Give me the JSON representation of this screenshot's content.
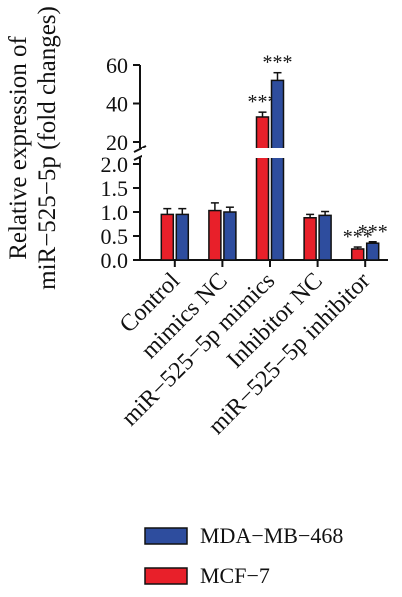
{
  "chart_data": {
    "type": "bar",
    "ylabel_lines": [
      "Relative expression of",
      "miR−525−5p (fold changes)"
    ],
    "categories": [
      "Control",
      "mimics NC",
      "miR−525−5p mimics",
      "Inhibitor NC",
      "miR−525−5p inhibitor"
    ],
    "series": [
      {
        "name": "MCF−7",
        "color": "#e8202a",
        "values": [
          0.95,
          1.03,
          33,
          0.88,
          0.23
        ],
        "errors": [
          0.12,
          0.16,
          2.5,
          0.07,
          0.04
        ],
        "significance": [
          "",
          "",
          "***",
          "",
          "***"
        ]
      },
      {
        "name": "MDA−MB−468",
        "color": "#2e4d9e",
        "values": [
          0.95,
          1.0,
          52,
          0.93,
          0.35
        ],
        "errors": [
          0.12,
          0.1,
          4,
          0.08,
          0.03
        ],
        "significance": [
          "",
          "",
          "***",
          "",
          "***"
        ]
      }
    ],
    "ylim_lower": [
      0,
      2.0
    ],
    "ylim_upper": [
      20,
      60
    ],
    "yticks_lower": [
      "0.0",
      "0.5",
      "1.0",
      "1.5",
      "2.0"
    ],
    "yticks_upper": [
      "20",
      "40",
      "60"
    ],
    "y_axis_break": true,
    "legend_position": "bottom"
  }
}
